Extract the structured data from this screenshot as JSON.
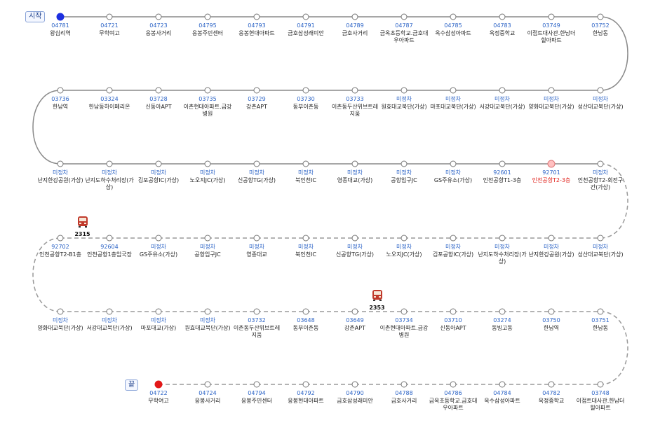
{
  "labels": {
    "start": "시작",
    "end": "끝"
  },
  "colors": {
    "solid_line": "#8a8a8a",
    "dashed_line": "#9a9a9a",
    "start_dot": "#1d2fe0",
    "end_dot": "#e31818",
    "highlight_dot": "#ffc0c0"
  },
  "rows": [
    {
      "direction": "ltr",
      "line": "solid",
      "stops": [
        {
          "code": "04781",
          "name": "왕십리역"
        },
        {
          "code": "04721",
          "name": "무학여고"
        },
        {
          "code": "04723",
          "name": "응봉사거리"
        },
        {
          "code": "04795",
          "name": "응봉주민센터"
        },
        {
          "code": "04793",
          "name": "응봉현대아파트"
        },
        {
          "code": "04791",
          "name": "금호삼성래미안"
        },
        {
          "code": "04789",
          "name": "금호사거리"
        },
        {
          "code": "04787",
          "name": "금옥초등학교.금호대우아파트"
        },
        {
          "code": "04785",
          "name": "옥수삼성아파트"
        },
        {
          "code": "04783",
          "name": "옥정중학교"
        },
        {
          "code": "03749",
          "name": "이접트대사관.한남더힐아파트"
        },
        {
          "code": "03752",
          "name": "한남동"
        }
      ]
    },
    {
      "direction": "rtl",
      "line": "solid",
      "stops": [
        {
          "code": "미정차",
          "name": "성산대교북단(가상)"
        },
        {
          "code": "미정차",
          "name": "양화대교북단(가상)"
        },
        {
          "code": "미정차",
          "name": "서강대교북단(가상)"
        },
        {
          "code": "미정차",
          "name": "마포대교북단(가상)"
        },
        {
          "code": "미정차",
          "name": "원효대교북단(가상)"
        },
        {
          "code": "03733",
          "name": "이촌동두산위브트레지움"
        },
        {
          "code": "03730",
          "name": "동부이촌동"
        },
        {
          "code": "03729",
          "name": "강촌APT"
        },
        {
          "code": "03735",
          "name": "이촌현대아파트.금강병원"
        },
        {
          "code": "03728",
          "name": "신동아APT"
        },
        {
          "code": "03324",
          "name": "한남동하이페리온"
        },
        {
          "code": "03736",
          "name": "한남역"
        }
      ]
    },
    {
      "direction": "ltr",
      "line": "solid",
      "stops": [
        {
          "code": "미정차",
          "name": "난지한강공원(가상)"
        },
        {
          "code": "미정차",
          "name": "난지도하수처리장(가상)"
        },
        {
          "code": "미정차",
          "name": "김포공항IC(가상)"
        },
        {
          "code": "미정차",
          "name": "노오지JC(가상)"
        },
        {
          "code": "미정차",
          "name": "신공항TG(가상)"
        },
        {
          "code": "미정차",
          "name": "북인천IC"
        },
        {
          "code": "미정차",
          "name": "영종대교(가상)"
        },
        {
          "code": "미정차",
          "name": "공항입구JC"
        },
        {
          "code": "미정차",
          "name": "GS주유소(가상)"
        },
        {
          "code": "92601",
          "name": "인천공항T1-3층"
        },
        {
          "code": "92701",
          "name": "인천공항T2-3층",
          "highlight": true
        },
        {
          "code": "미정차",
          "name": "인천공항T2-회전구간(가상)"
        }
      ]
    },
    {
      "direction": "rtl",
      "line": "dashed",
      "stops": [
        {
          "code": "미정차",
          "name": "성산대교북단(가상)"
        },
        {
          "code": "미정차",
          "name": "난지한강공원(가상)"
        },
        {
          "code": "미정차",
          "name": "난지도하수처리장(가상)"
        },
        {
          "code": "미정차",
          "name": "김포공항IC(가상)"
        },
        {
          "code": "미정차",
          "name": "노오지JC(가상)"
        },
        {
          "code": "미정차",
          "name": "신공항TG(가상)"
        },
        {
          "code": "미정차",
          "name": "북인천IC"
        },
        {
          "code": "미정차",
          "name": "영종대교"
        },
        {
          "code": "미정차",
          "name": "공항입구JC"
        },
        {
          "code": "미정차",
          "name": "GS주유소(가상)"
        },
        {
          "code": "92604",
          "name": "인천공항1층임국장"
        },
        {
          "code": "92702",
          "name": "인천공항T2-B1층"
        }
      ]
    },
    {
      "direction": "ltr",
      "line": "dashed",
      "stops": [
        {
          "code": "미정차",
          "name": "양화대교북단(가상)"
        },
        {
          "code": "미정차",
          "name": "서강대교북단(가상)"
        },
        {
          "code": "미정차",
          "name": "마포대교(가상)"
        },
        {
          "code": "미정차",
          "name": "원효대교북단(가상)"
        },
        {
          "code": "03732",
          "name": "이촌동두산위브트레지움"
        },
        {
          "code": "03648",
          "name": "동부이촌동"
        },
        {
          "code": "03649",
          "name": "강촌APT"
        },
        {
          "code": "03734",
          "name": "이촌현대아파트.금강병원"
        },
        {
          "code": "03710",
          "name": "신동아APT"
        },
        {
          "code": "03274",
          "name": "동빙고동"
        },
        {
          "code": "03750",
          "name": "한남역"
        },
        {
          "code": "03751",
          "name": "한남동"
        }
      ]
    },
    {
      "direction": "rtl",
      "line": "dashed",
      "stops": [
        {
          "code": "04722",
          "name": "무학여고"
        },
        {
          "code": "04724",
          "name": "응봉사거리"
        },
        {
          "code": "04794",
          "name": "응봉주민센터"
        },
        {
          "code": "04792",
          "name": "응봉현대아파트"
        },
        {
          "code": "04790",
          "name": "금호삼성래미안"
        },
        {
          "code": "04788",
          "name": "금호사거리"
        },
        {
          "code": "04786",
          "name": "금옥초등학교.금호대우아파트"
        },
        {
          "code": "04784",
          "name": "옥수삼성아파트"
        },
        {
          "code": "04782",
          "name": "옥정중학교"
        },
        {
          "code": "03748",
          "name": "이접트대사관.한남더힐아파트"
        }
      ]
    }
  ],
  "buses": [
    {
      "number": "2315",
      "row": 3,
      "between": [
        10,
        11
      ],
      "frac": 0.55
    },
    {
      "number": "2353",
      "row": 4,
      "between": [
        6,
        7
      ],
      "frac": 0.45
    }
  ]
}
